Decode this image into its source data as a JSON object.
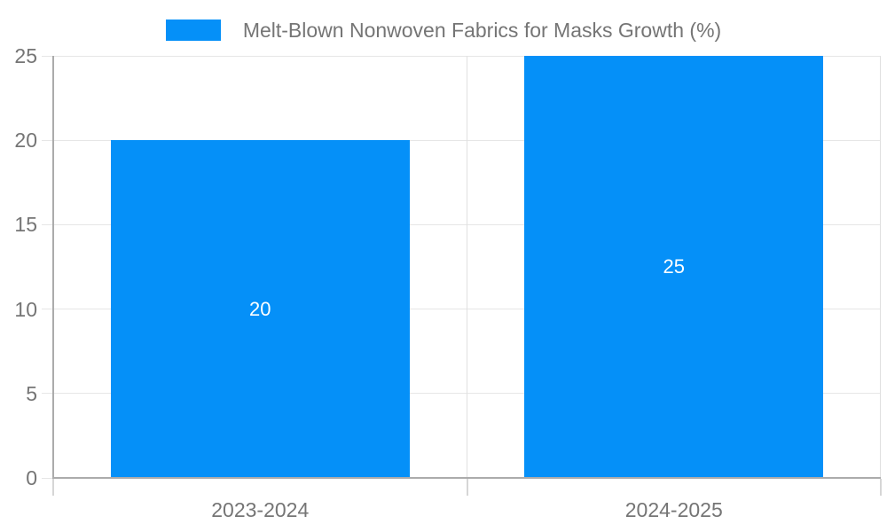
{
  "legend": {
    "label": "Melt-Blown Nonwoven Fabrics for Masks Growth (%)",
    "swatch_color": "#0590f8"
  },
  "chart_data": {
    "type": "bar",
    "title": "Melt-Blown Nonwoven Fabrics for Masks Growth (%)",
    "categories": [
      "2023-2024",
      "2024-2025"
    ],
    "values": [
      20,
      25
    ],
    "data_labels": [
      "20",
      "25"
    ],
    "xlabel": "",
    "ylabel": "",
    "ylim": [
      0,
      25
    ],
    "yticks": [
      0,
      5,
      10,
      15,
      20,
      25
    ],
    "grid": true,
    "legend_position": "top-center",
    "colors": {
      "bar": "#0590f8",
      "grid_line": "#e6e6e6",
      "boundary_line": "#e0e0e0",
      "axis_line": "#ababab",
      "below_axis_tick": "#d6d6d6",
      "tick_label": "#757575",
      "title_text": "#757575",
      "data_label": "#ffffff",
      "background": "#ffffff"
    }
  }
}
